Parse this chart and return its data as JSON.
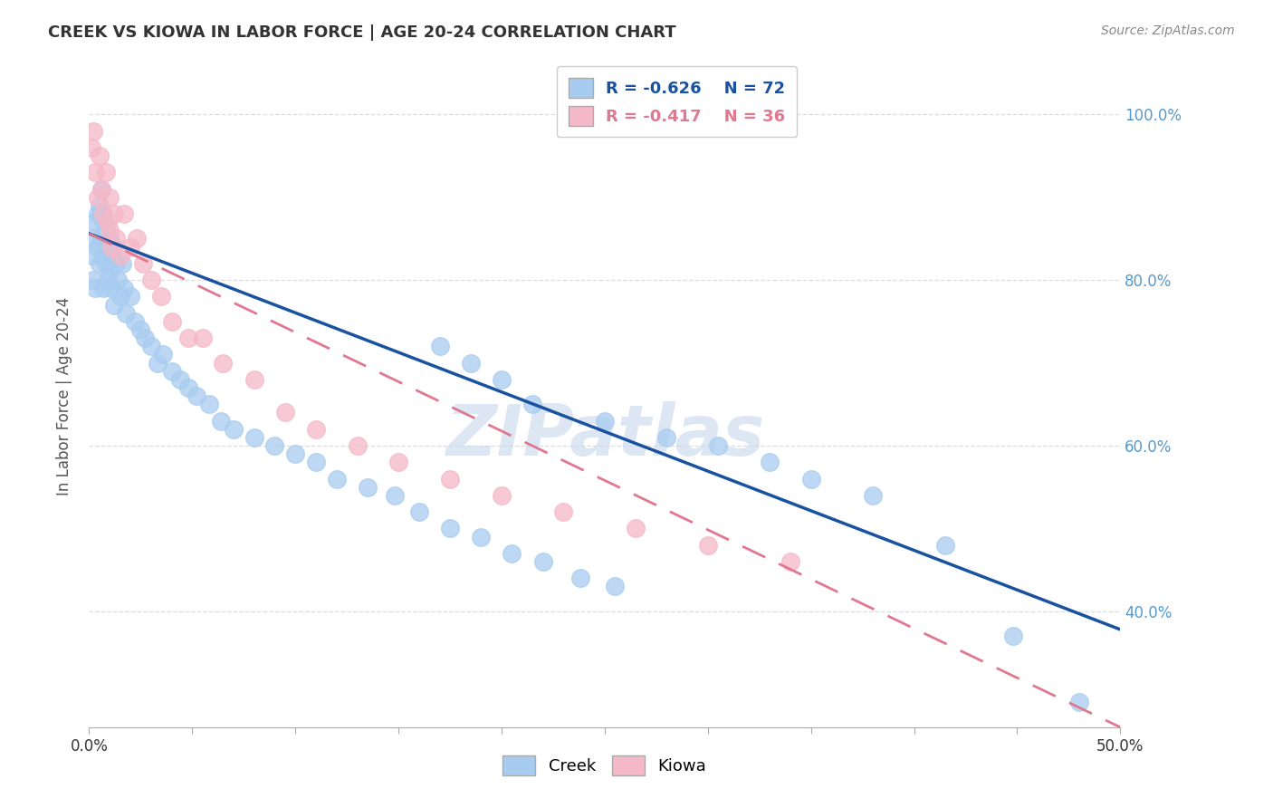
{
  "title": "CREEK VS KIOWA IN LABOR FORCE | AGE 20-24 CORRELATION CHART",
  "source": "Source: ZipAtlas.com",
  "ylabel_label": "In Labor Force | Age 20-24",
  "xlim": [
    0.0,
    0.5
  ],
  "ylim": [
    0.26,
    1.06
  ],
  "yticks": [
    0.4,
    0.6,
    0.8,
    1.0
  ],
  "yticklabels": [
    "40.0%",
    "60.0%",
    "80.0%",
    "100.0%"
  ],
  "creek_R": -0.626,
  "creek_N": 72,
  "kiowa_R": -0.417,
  "kiowa_N": 36,
  "creek_color": "#A8CCF0",
  "kiowa_color": "#F5B8C8",
  "creek_line_color": "#1A52A0",
  "kiowa_line_color": "#E07890",
  "watermark": "ZIPatlas",
  "watermark_color": "#C5D8EC",
  "background_color": "#FFFFFF",
  "grid_color": "#DDDDDD",
  "title_color": "#333333",
  "right_tick_color": "#5599CC",
  "creek_line_x0": 0.0,
  "creek_line_y0": 0.856,
  "creek_line_x1": 0.5,
  "creek_line_y1": 0.378,
  "kiowa_line_x0": 0.0,
  "kiowa_line_y0": 0.856,
  "kiowa_line_x1": 0.5,
  "kiowa_line_y1": 0.26,
  "creek_scatter_x": [
    0.001,
    0.002,
    0.002,
    0.003,
    0.003,
    0.004,
    0.004,
    0.005,
    0.005,
    0.006,
    0.006,
    0.006,
    0.007,
    0.007,
    0.007,
    0.008,
    0.008,
    0.009,
    0.009,
    0.01,
    0.01,
    0.011,
    0.011,
    0.012,
    0.012,
    0.013,
    0.014,
    0.015,
    0.016,
    0.017,
    0.018,
    0.02,
    0.022,
    0.025,
    0.027,
    0.03,
    0.033,
    0.036,
    0.04,
    0.044,
    0.048,
    0.052,
    0.058,
    0.064,
    0.07,
    0.08,
    0.09,
    0.1,
    0.11,
    0.12,
    0.135,
    0.148,
    0.16,
    0.175,
    0.19,
    0.205,
    0.22,
    0.238,
    0.255,
    0.17,
    0.185,
    0.2,
    0.215,
    0.25,
    0.28,
    0.305,
    0.33,
    0.35,
    0.38,
    0.415,
    0.448,
    0.48
  ],
  "creek_scatter_y": [
    0.83,
    0.8,
    0.85,
    0.87,
    0.79,
    0.88,
    0.84,
    0.89,
    0.82,
    0.88,
    0.85,
    0.91,
    0.87,
    0.83,
    0.79,
    0.86,
    0.82,
    0.84,
    0.8,
    0.85,
    0.81,
    0.83,
    0.79,
    0.84,
    0.77,
    0.82,
    0.8,
    0.78,
    0.82,
    0.79,
    0.76,
    0.78,
    0.75,
    0.74,
    0.73,
    0.72,
    0.7,
    0.71,
    0.69,
    0.68,
    0.67,
    0.66,
    0.65,
    0.63,
    0.62,
    0.61,
    0.6,
    0.59,
    0.58,
    0.56,
    0.55,
    0.54,
    0.52,
    0.5,
    0.49,
    0.47,
    0.46,
    0.44,
    0.43,
    0.72,
    0.7,
    0.68,
    0.65,
    0.63,
    0.61,
    0.6,
    0.58,
    0.56,
    0.54,
    0.48,
    0.37,
    0.29
  ],
  "kiowa_scatter_x": [
    0.001,
    0.002,
    0.003,
    0.004,
    0.005,
    0.006,
    0.007,
    0.008,
    0.009,
    0.01,
    0.01,
    0.011,
    0.012,
    0.013,
    0.015,
    0.017,
    0.02,
    0.023,
    0.026,
    0.03,
    0.035,
    0.04,
    0.048,
    0.055,
    0.065,
    0.08,
    0.095,
    0.11,
    0.13,
    0.15,
    0.175,
    0.2,
    0.23,
    0.265,
    0.3,
    0.34
  ],
  "kiowa_scatter_y": [
    0.96,
    0.98,
    0.93,
    0.9,
    0.95,
    0.91,
    0.88,
    0.93,
    0.87,
    0.9,
    0.86,
    0.84,
    0.88,
    0.85,
    0.83,
    0.88,
    0.84,
    0.85,
    0.82,
    0.8,
    0.78,
    0.75,
    0.73,
    0.73,
    0.7,
    0.68,
    0.64,
    0.62,
    0.6,
    0.58,
    0.56,
    0.54,
    0.52,
    0.5,
    0.48,
    0.46
  ]
}
